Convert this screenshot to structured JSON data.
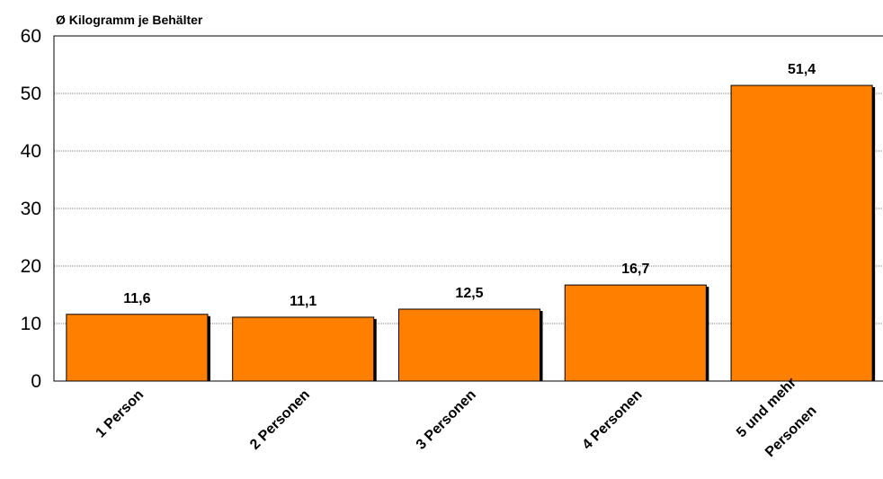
{
  "chart_data": {
    "type": "bar",
    "ylabel": "Ø Kilogramm je Behälter",
    "categories": [
      [
        "1 Person"
      ],
      [
        "2 Personen"
      ],
      [
        "3 Personen"
      ],
      [
        "4 Personen"
      ],
      [
        "5 und mehr",
        "Personen"
      ]
    ],
    "values": [
      11.6,
      11.1,
      12.5,
      16.7,
      51.4
    ],
    "data_labels": [
      "11,6",
      "11,1",
      "12,5",
      "16,7",
      "51,4"
    ],
    "ylim": [
      0,
      60
    ],
    "yticks": [
      "0",
      "10",
      "20",
      "30",
      "40",
      "50",
      "60"
    ],
    "grid": true,
    "legend": false,
    "bar_color": "#FF8000",
    "bar_shadow_color": "#000000"
  }
}
